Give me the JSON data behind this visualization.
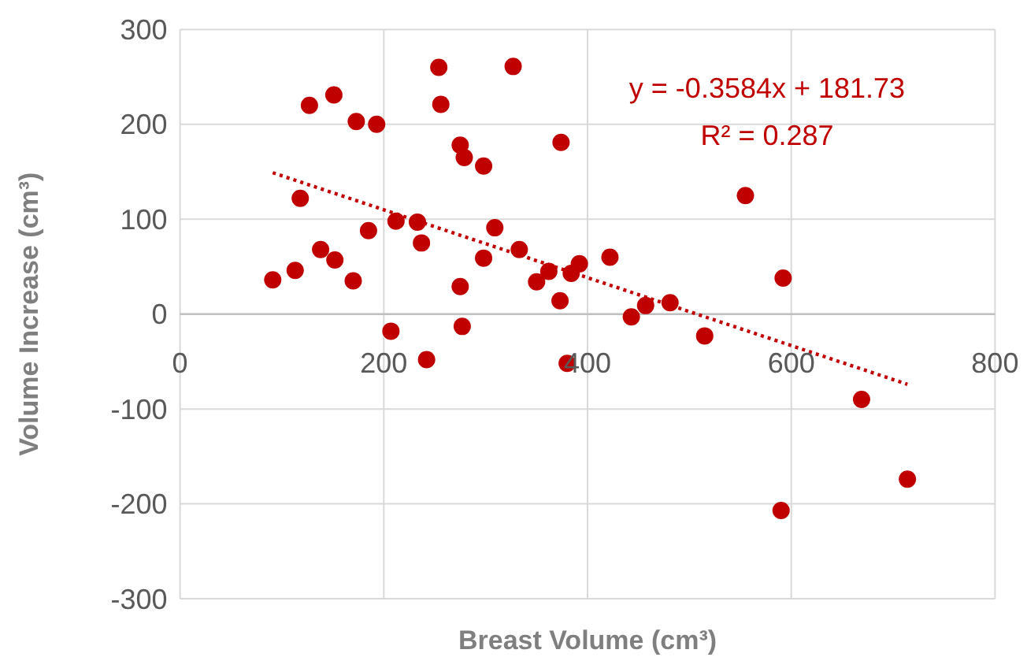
{
  "chart_data": {
    "type": "scatter",
    "xlabel": "Breast Volume (cm³)",
    "ylabel": "Volume Increase (cm³)",
    "xlim": [
      0,
      800
    ],
    "xticks": [
      0,
      200,
      400,
      600,
      800
    ],
    "ylim": [
      -300,
      300
    ],
    "yticks": [
      -300,
      -200,
      -100,
      0,
      100,
      200,
      300
    ],
    "grid": true,
    "marker": "circle",
    "annotations": [
      "y = -0.3584x + 181.73",
      "R² = 0.287"
    ],
    "series": [
      {
        "type": "scatter",
        "color": "#c00000",
        "x": [
          91,
          113,
          118,
          127,
          151,
          138,
          152,
          170,
          173,
          193,
          185,
          207,
          212,
          233,
          237,
          242,
          254,
          256,
          275,
          279,
          275,
          277,
          298,
          298,
          309,
          327,
          333,
          350,
          362,
          374,
          373,
          384,
          392,
          422,
          443,
          457,
          481,
          515,
          555,
          592,
          669,
          714,
          590,
          380
        ],
        "values": [
          36,
          46,
          122,
          220,
          231,
          68,
          57,
          35,
          203,
          200,
          88,
          -18,
          98,
          97,
          75,
          -48,
          260,
          221,
          178,
          165,
          29,
          -13,
          156,
          59,
          91,
          261,
          68,
          34,
          45,
          181,
          14,
          43,
          53,
          60,
          -3,
          9,
          12,
          -23,
          125,
          38,
          -90,
          -174,
          -207,
          -52
        ]
      },
      {
        "type": "line",
        "color": "#c00000",
        "line_style": "dotted",
        "marker": "none",
        "x": [
          91,
          714
        ],
        "values": [
          149,
          -74
        ]
      }
    ]
  }
}
